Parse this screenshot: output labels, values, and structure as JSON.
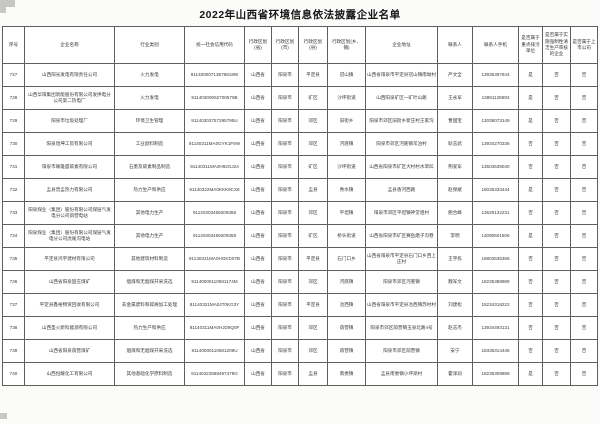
{
  "page": {
    "title": "2022年山西省环境信息依法披露企业名单"
  },
  "table": {
    "headers": [
      "序号",
      "企业名称",
      "行业类别",
      "统一社会信用代码",
      "行政区划(省)",
      "行政区划(市)",
      "行政区划(县)",
      "行政区划(乡、镇)",
      "企业地址",
      "联系人",
      "联系人手机",
      "是否属于重点排污单位",
      "是否属于实施强制性清洁生产审核的企业",
      "是否属于上市公司"
    ],
    "rows": [
      [
        "727",
        "山西阳光发电有限责任公司",
        "火力发电",
        "91140000713579818W",
        "山西省",
        "阳泉市",
        "平定县",
        "冠山镇",
        "山西省阳泉市平定县冠山镇南坳村",
        "严文全",
        "13935397844",
        "是",
        "否",
        "否"
      ],
      [
        "728",
        "山西华阳集团新能股份有限公司发供电分公司第二热电厂",
        "火力发电",
        "91140300062700579B",
        "山西省",
        "阳泉市",
        "矿区",
        "沙坪街道",
        "山西阳泉矿区一矿叶山路",
        "王永军",
        "13891128693",
        "是",
        "否",
        "否"
      ],
      [
        "729",
        "阳泉市垃圾处理厂",
        "环境卫生管理",
        "91140302757295795U",
        "山西省",
        "阳泉市",
        "郊区",
        "旧街乡",
        "阳泉市郊区旧街乡新庄村王家沟",
        "曹国宝",
        "13038073149",
        "是",
        "否",
        "否"
      ],
      [
        "730",
        "阳泉煊坤工贸有限公司",
        "工业颜料制造",
        "91140311MA0GYK1F9W",
        "山西省",
        "阳泉市",
        "郊区",
        "河底镇",
        "阳泉市郊区河底镇苇泊村",
        "耿志武",
        "13934270336",
        "否",
        "否",
        "否"
      ],
      [
        "731",
        "阳泉市联雄盛碳素有限公司",
        "石墨及碳素制品制造",
        "91140311MA0H92GJ24",
        "山西省",
        "阳泉市",
        "矿区",
        "沙坪街道",
        "山西省阳泉市矿区大村村水草凹",
        "荆爱军",
        "13503539040",
        "否",
        "否",
        "否"
      ],
      [
        "732",
        "盂县普盂热力有限公司",
        "热力生产和供应",
        "91140322MA0KKK9CX8",
        "山西省",
        "阳泉市",
        "盂县",
        "秀水镇",
        "盂县香河西路",
        "赵保斌",
        "15035333444",
        "是",
        "否",
        "否"
      ],
      [
        "733",
        "阳泉煤业（集团）股份有限公司煤层气发电分公司荫营电站",
        "其他电力生产",
        "91140303469209358",
        "山西省",
        "阳泉市",
        "郊区",
        "平坦镇",
        "阳泉市郊区平坦镇神堂咀村",
        "鲍合峰",
        "13629132231",
        "否",
        "否",
        "否"
      ],
      [
        "734",
        "阳泉煤业（集团）股份有限公司煤层气发电分公司虎尾沟电站",
        "其他电力生产",
        "91140303469209358",
        "山西省",
        "阳泉市",
        "矿区",
        "桥头街道",
        "山西省阳泉市矿区赛鱼磨子沟巷",
        "李明",
        "13090501506",
        "是",
        "否",
        "否"
      ],
      [
        "735",
        "平定县鸿宇建材有限公司",
        "其他建筑材料制造",
        "91140321MA0HGKD07B",
        "山西省",
        "阳泉市",
        "平定县",
        "石门口乡",
        "山西省阳泉市平定县石门口乡西上庄村",
        "王宇栋",
        "18803536366",
        "否",
        "否",
        "否"
      ],
      [
        "736",
        "山西省阳泉固庄煤矿",
        "烟煤和无烟煤开采洗选",
        "91140000110581174M",
        "山西省",
        "阳泉市",
        "郊区",
        "河底镇",
        "阳泉市郊区河底镇",
        "魏军文",
        "18235388989",
        "否",
        "否",
        "否"
      ],
      [
        "737",
        "平定县鑫裕物资回收有限公司",
        "非金属废料和碎屑加工处理",
        "91140321MA0JT0KG3Y",
        "山西省",
        "阳泉市",
        "平定县",
        "冶西镇",
        "山西省阳泉市平定县冶西镇苏村村",
        "刘建松",
        "15234318222",
        "否",
        "否",
        "否"
      ],
      [
        "738",
        "山西圣火新科能源有限公司",
        "热力生产和供应",
        "91140311MA0HJD9Q0F",
        "山西省",
        "阳泉市",
        "郊区",
        "荫营镇",
        "阳泉市郊区荫营镇玉泉北路4号",
        "赵志杰",
        "13934493131",
        "否",
        "否",
        "否"
      ],
      [
        "739",
        "山西省阳泉荫营煤矿",
        "烟煤和无烟煤开采洗选",
        "91140000110581209U",
        "山西省",
        "阳泉市",
        "郊区",
        "荫营镇",
        "阳泉市郊区荫营镇",
        "安宁",
        "18335314446",
        "否",
        "否",
        "否"
      ],
      [
        "740",
        "山西恒耀化工有限公司",
        "其他基础化学原料制造",
        "91140322568497478G",
        "山西省",
        "阳泉市",
        "盂县",
        "南娄镇",
        "盂县南娄镇小坪梁村",
        "霍泽润",
        "18235309889",
        "是",
        "否",
        "否"
      ]
    ]
  }
}
